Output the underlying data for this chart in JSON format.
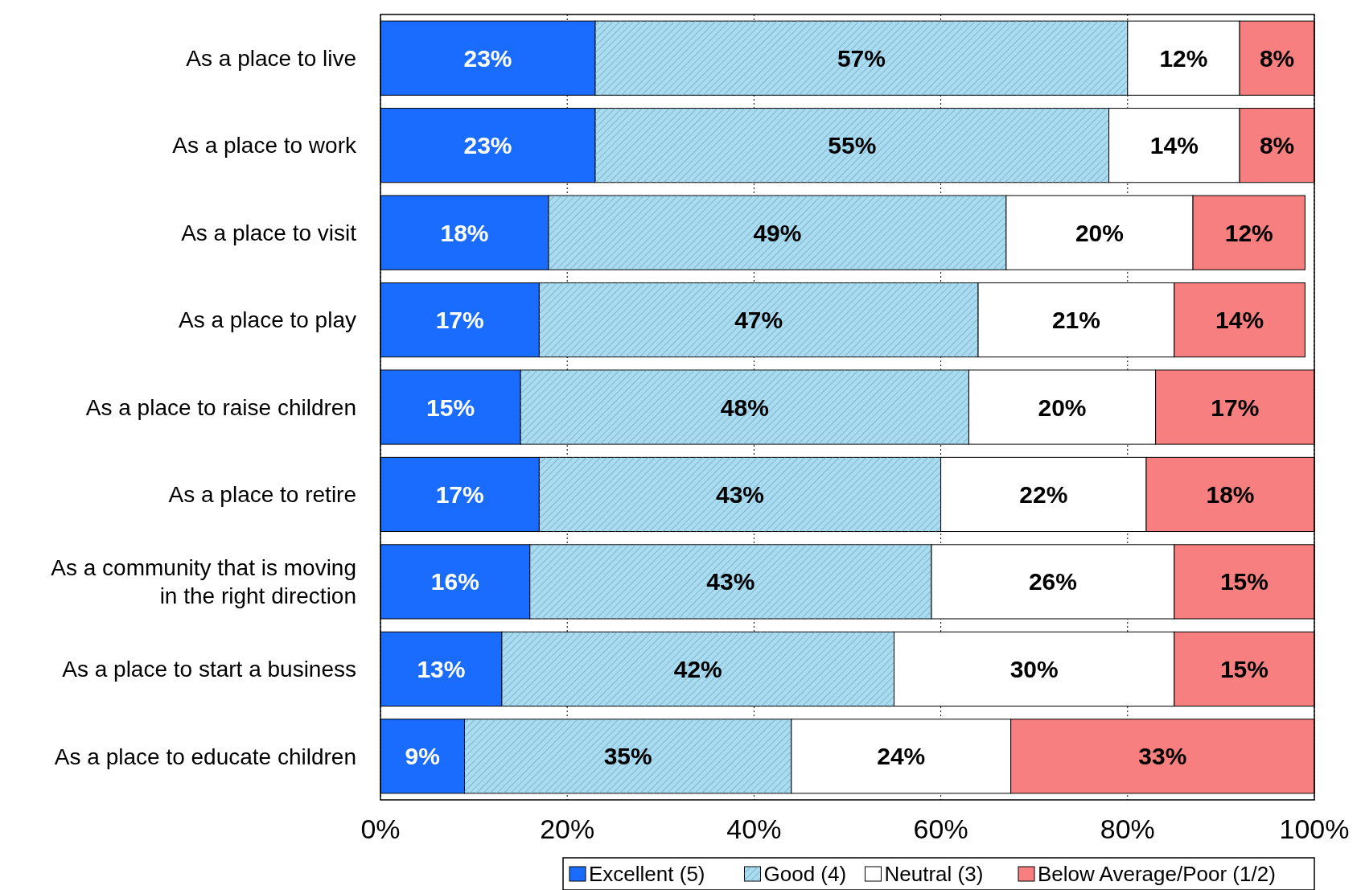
{
  "chart_data": {
    "type": "bar",
    "orientation": "horizontal",
    "stacked": true,
    "categories": [
      "As a place to live",
      "As a place to work",
      "As a place to visit",
      "As a place to play",
      "As a place to raise children",
      "As a place to retire",
      "As a community that is moving\nin the right direction",
      "As a place to start a business",
      "As a place to educate children"
    ],
    "series": [
      {
        "name": "Excellent (5)",
        "color": "#1a6cff",
        "values": [
          23,
          23,
          18,
          17,
          15,
          17,
          16,
          13,
          9
        ],
        "value_labels": [
          "23%",
          "23%",
          "18%",
          "17%",
          "15%",
          "17%",
          "16%",
          "13%",
          "9%"
        ]
      },
      {
        "name": "Good (4)",
        "color": "#a8dcf2",
        "values": [
          57,
          55,
          49,
          47,
          48,
          43,
          43,
          42,
          35
        ],
        "value_labels": [
          "57%",
          "55%",
          "49%",
          "47%",
          "48%",
          "43%",
          "43%",
          "42%",
          "35%"
        ]
      },
      {
        "name": "Neutral (3)",
        "color": "#ffffff",
        "values": [
          12,
          14,
          20,
          21,
          20,
          22,
          26,
          30,
          23.5
        ],
        "value_labels": [
          "12%",
          "14%",
          "20%",
          "21%",
          "20%",
          "22%",
          "26%",
          "30%",
          "24%"
        ]
      },
      {
        "name": "Below Average/Poor (1/2)",
        "color": "#f77f7f",
        "values": [
          8,
          8,
          12,
          14,
          17,
          18,
          15,
          15,
          32.5
        ],
        "value_labels": [
          "8%",
          "8%",
          "12%",
          "14%",
          "17%",
          "18%",
          "15%",
          "15%",
          "33%"
        ]
      }
    ],
    "xlim": [
      0,
      100
    ],
    "xticks": [
      {
        "value": 0,
        "label": "0%"
      },
      {
        "value": 20,
        "label": "20%"
      },
      {
        "value": 40,
        "label": "40%"
      },
      {
        "value": 60,
        "label": "60%"
      },
      {
        "value": 80,
        "label": "80%"
      },
      {
        "value": 100,
        "label": "100%"
      }
    ],
    "grid": "x",
    "legend": "bottom"
  }
}
